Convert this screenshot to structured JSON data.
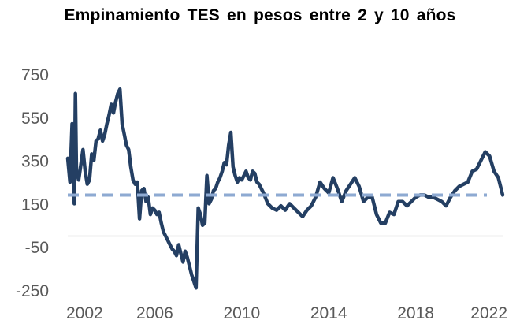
{
  "chart_data": {
    "type": "line",
    "title": "Empinamiento  TES en pesos entre 2 y 10 años",
    "xlabel": "",
    "ylabel": "",
    "xlim": [
      2002,
      2022
    ],
    "ylim": [
      -250,
      750
    ],
    "x_ticks": [
      2002,
      2006,
      2010,
      2014,
      2018,
      2022
    ],
    "y_ticks": [
      750,
      550,
      350,
      150,
      -50,
      -250
    ],
    "grid": false,
    "legend": "none",
    "colors": {
      "series_line": "#243f63",
      "reference_line": "#8eaad2",
      "zero_axis": "#d9d9d9",
      "tick_text": "#595959"
    },
    "series": [
      {
        "x": [
          2002.0,
          2002.1,
          2002.2,
          2002.3,
          2002.35,
          2002.4,
          2002.5,
          2002.6,
          2002.7,
          2002.8,
          2002.9,
          2003.0,
          2003.1,
          2003.2,
          2003.3,
          2003.4,
          2003.5,
          2003.6,
          2003.7,
          2003.8,
          2003.9,
          2004.0,
          2004.1,
          2004.2,
          2004.3,
          2004.4,
          2004.5,
          2004.6,
          2004.7,
          2004.8,
          2004.9,
          2005.0,
          2005.1,
          2005.2,
          2005.3,
          2005.4,
          2005.5,
          2005.6,
          2005.7,
          2005.8,
          2005.9,
          2006.0,
          2006.1,
          2006.2,
          2006.3,
          2006.4,
          2006.5,
          2006.6,
          2006.7,
          2006.8,
          2006.9,
          2007.0,
          2007.1,
          2007.2,
          2007.3,
          2007.4,
          2007.5,
          2007.6,
          2007.7,
          2007.8,
          2007.9,
          2008.0,
          2008.1,
          2008.2,
          2008.3,
          2008.4,
          2008.5,
          2008.6,
          2008.7,
          2008.8,
          2008.9,
          2009.0,
          2009.1,
          2009.2,
          2009.3,
          2009.4,
          2009.5,
          2009.6,
          2009.7,
          2009.8,
          2009.9,
          2010.0,
          2010.1,
          2010.2,
          2010.3,
          2010.4,
          2010.5,
          2010.6,
          2010.7,
          2010.8,
          2010.9,
          2011.0,
          2011.2,
          2011.4,
          2011.6,
          2011.8,
          2012.0,
          2012.2,
          2012.4,
          2012.6,
          2012.8,
          2013.0,
          2013.2,
          2013.4,
          2013.6,
          2013.8,
          2014.0,
          2014.2,
          2014.4,
          2014.6,
          2014.8,
          2015.0,
          2015.2,
          2015.4,
          2015.6,
          2015.8,
          2016.0,
          2016.2,
          2016.4,
          2016.6,
          2016.8,
          2017.0,
          2017.2,
          2017.4,
          2017.6,
          2017.8,
          2018.0,
          2018.2,
          2018.4,
          2018.6,
          2018.8,
          2019.0,
          2019.2,
          2019.4,
          2019.6,
          2019.8,
          2020.0,
          2020.2,
          2020.4,
          2020.6,
          2020.8,
          2021.0,
          2021.2,
          2021.4,
          2021.6,
          2021.8,
          2022.0
        ],
        "values": [
          360,
          250,
          520,
          150,
          660,
          300,
          260,
          330,
          400,
          300,
          240,
          260,
          380,
          350,
          440,
          450,
          490,
          440,
          470,
          520,
          560,
          610,
          570,
          620,
          660,
          680,
          520,
          470,
          420,
          400,
          320,
          260,
          240,
          250,
          80,
          210,
          220,
          160,
          180,
          100,
          130,
          120,
          100,
          110,
          60,
          20,
          0,
          -20,
          -40,
          -60,
          -70,
          -90,
          -40,
          -80,
          -120,
          -70,
          -100,
          -140,
          -180,
          -210,
          -240,
          130,
          100,
          50,
          60,
          280,
          150,
          170,
          210,
          220,
          250,
          270,
          300,
          340,
          330,
          420,
          480,
          320,
          280,
          250,
          270,
          260,
          280,
          300,
          270,
          260,
          300,
          290,
          250,
          240,
          220,
          200,
          150,
          130,
          120,
          140,
          120,
          150,
          130,
          110,
          90,
          120,
          140,
          180,
          250,
          220,
          200,
          270,
          220,
          160,
          210,
          240,
          270,
          230,
          160,
          180,
          180,
          100,
          60,
          60,
          110,
          100,
          160,
          160,
          140,
          160,
          180,
          190,
          190,
          180,
          180,
          170,
          160,
          140,
          180,
          210,
          230,
          240,
          250,
          300,
          310,
          350,
          390,
          370,
          300,
          270,
          190
        ]
      }
    ],
    "reference_line": 190
  }
}
